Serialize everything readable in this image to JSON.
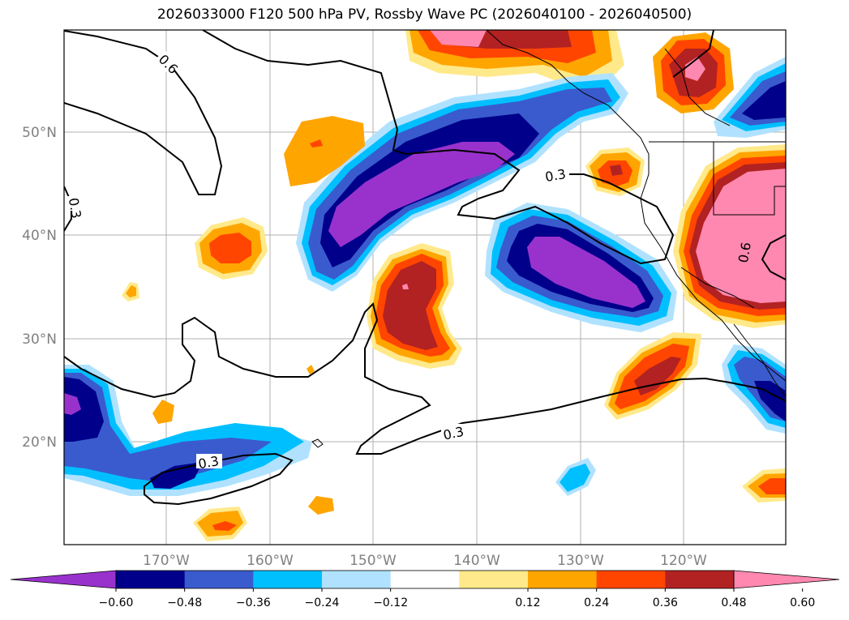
{
  "title": "2026033000 F120 500 hPa PV, Rossby Wave PC (2026040100 - 2026040500)",
  "map": {
    "lat_labels": [
      "50°N",
      "40°N",
      "30°N",
      "20°N"
    ],
    "lon_labels": [
      "170°W",
      "160°W",
      "150°W",
      "140°W",
      "130°W",
      "120°W"
    ],
    "contour_labels": [
      "0.6",
      "0.3",
      "0.3",
      "0.3",
      "0.3",
      "0.6"
    ]
  },
  "colorbar": {
    "ticks": [
      "−0.60",
      "−0.48",
      "−0.36",
      "−0.24",
      "−0.12",
      "0.12",
      "0.24",
      "0.36",
      "0.48",
      "0.60"
    ],
    "colors": [
      "#9932cc",
      "#00008b",
      "#3a5bcd",
      "#00bfff",
      "#b0e2ff",
      "#ffffff",
      "#ffe98a",
      "#ffa500",
      "#ff4500",
      "#b22222",
      "#ff88b0"
    ]
  }
}
